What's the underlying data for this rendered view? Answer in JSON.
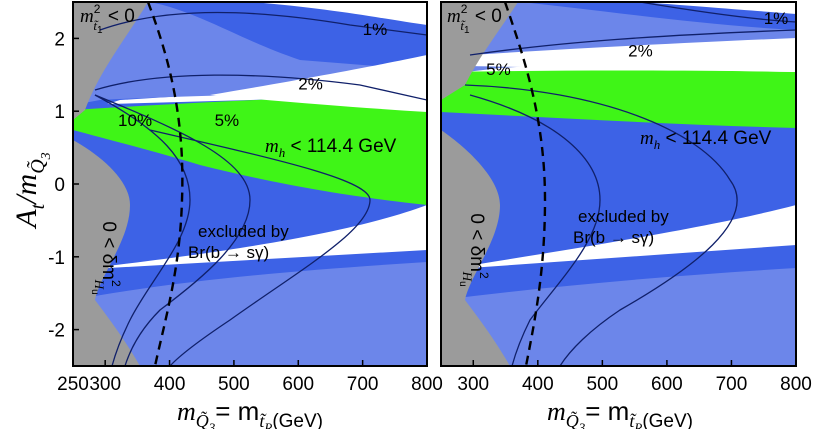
{
  "chart_data": {
    "type": "contour",
    "ylabel": "A_t/m_Q̃3",
    "panels": [
      {
        "panel": "left",
        "xlabel": "m_Q̃3 = m_t̃R (GeV)",
        "xlim": [
          250,
          800
        ],
        "ylim": [
          -2.5,
          2.5
        ],
        "xticks": [
          250,
          300,
          400,
          500,
          600,
          700,
          800
        ],
        "yticks": [
          -2,
          -1,
          0,
          1,
          2
        ],
        "regions": [
          {
            "label": "m²_t̃1 < 0",
            "color": "#9b9b9b"
          },
          {
            "label": "0 < δm²_Hu",
            "color": "#9b9b9b"
          },
          {
            "label": "excluded by Br(b → sγ)",
            "color": "#3d62e6"
          },
          {
            "label": "m_h < 114.4 GeV",
            "color": "#3ff517"
          }
        ],
        "contours": [
          {
            "label": "1%",
            "label_at": [
              700,
              2.05
            ]
          },
          {
            "label": "2%",
            "label_at": [
              600,
              1.3
            ]
          },
          {
            "label": "5%",
            "label_at": [
              470,
              0.8
            ]
          },
          {
            "label": "10%",
            "label_at": [
              320,
              0.8
            ]
          }
        ],
        "dashed_boundary_x_at_ymin": 375,
        "bsg_boundary_x_at_y0": 710
      },
      {
        "panel": "right",
        "xlabel": "m_Q̃3 = m_t̃R (GeV)",
        "xlim": [
          250,
          800
        ],
        "ylim": [
          -2.5,
          2.5
        ],
        "xticks": [
          300,
          400,
          500,
          600,
          700,
          800
        ],
        "yticks": [],
        "regions": [
          {
            "label": "m²_t̃1 < 0",
            "color": "#9b9b9b"
          },
          {
            "label": "0 < δm²_Hu",
            "color": "#9b9b9b"
          },
          {
            "label": "excluded by Br(b → sγ)",
            "color": "#3d62e6"
          },
          {
            "label": "m_h < 114.4 GeV",
            "color": "#3ff517"
          }
        ],
        "contours": [
          {
            "label": "1%",
            "label_at": [
              750,
              2.2
            ]
          },
          {
            "label": "2%",
            "label_at": [
              540,
              1.75
            ]
          },
          {
            "label": "5%",
            "label_at": [
              320,
              1.5
            ]
          }
        ],
        "dashed_boundary_x_at_ymin": 375,
        "bsg_boundary_x_at_y0": 730
      }
    ]
  },
  "text": {
    "ylabel_main": "A",
    "ylabel_t": "t",
    "ylabel_slash": "/m",
    "ylabel_sub": "Q̃",
    "ylabel_subsub": "3",
    "xlabel_m": "m",
    "xlabel_sub1": "Q̃",
    "xlabel_sub1b": "3",
    "xlabel_eq": "= m",
    "xlabel_sub2": "t̃",
    "xlabel_sub2b": "R",
    "xlabel_unit": "(GeV)",
    "stop_neg_m": "m",
    "stop_neg_sup": "2",
    "stop_neg_sub": "t̃",
    "stop_neg_subb": "1",
    "stop_neg_rest": " < 0",
    "dmhu": "0 < δm",
    "dmhu_sup": "2",
    "dmhu_sub": "H",
    "dmhu_subb": "u",
    "excluded_line1": "excluded by",
    "excluded_line2": "Br(b → sγ)",
    "mh_m": "m",
    "mh_sub": "h",
    "mh_rest": " < 114.4 GeV"
  }
}
